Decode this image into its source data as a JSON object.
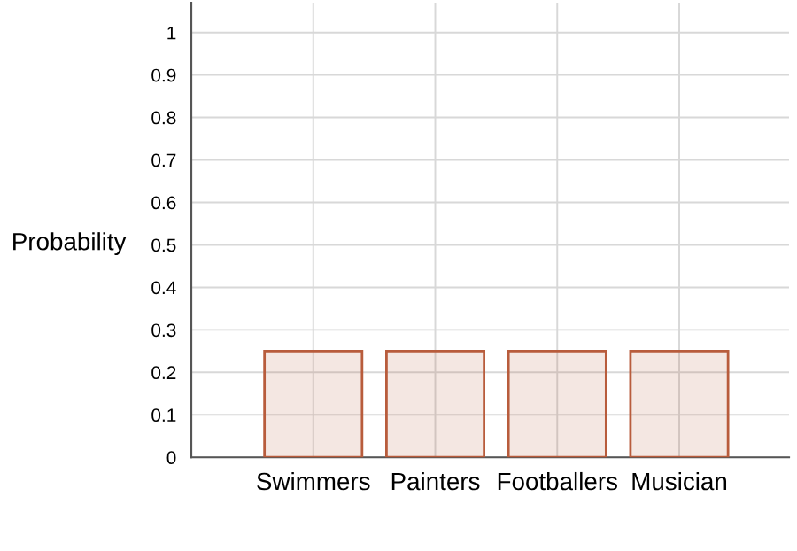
{
  "chart_data": {
    "type": "bar",
    "ylabel": "Probability",
    "categories": [
      "Swimmers",
      "Painters",
      "Footballers",
      "Musician"
    ],
    "values": [
      0.25,
      0.25,
      0.25,
      0.25
    ],
    "color": "#b85c3c",
    "ylim": [
      0,
      1.07
    ],
    "yticks": [
      0,
      0.1,
      0.2,
      0.3,
      0.4,
      0.5,
      0.6,
      0.7,
      0.8,
      0.9,
      1
    ],
    "grid": true,
    "legend": false
  }
}
